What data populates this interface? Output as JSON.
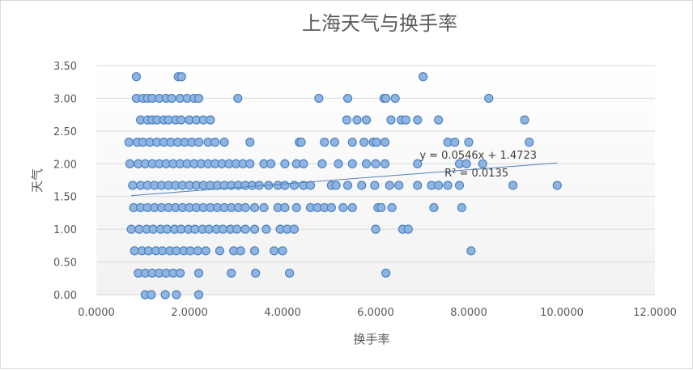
{
  "colors": {
    "marker_fill": "#8db4e2",
    "marker_stroke": "#4f81bd",
    "trendline": "#4f81bd",
    "grid": "#d9d9d9",
    "text": "#595959"
  },
  "chart_data": {
    "type": "scatter",
    "title": "上海天气与换手率",
    "xlabel": "换手率",
    "ylabel": "天气",
    "xlim": [
      0,
      12
    ],
    "ylim": [
      0,
      3.5
    ],
    "x_ticks": [
      "0.0000",
      "2.0000",
      "4.0000",
      "6.0000",
      "8.0000",
      "10.0000",
      "12.0000"
    ],
    "y_ticks": [
      "0.00",
      "0.50",
      "1.00",
      "1.50",
      "2.00",
      "2.50",
      "3.00",
      "3.50"
    ],
    "grid": "horizontal",
    "legend": "none",
    "trendline": {
      "type": "linear",
      "slope": 0.0546,
      "intercept": 1.4723,
      "x_range": [
        0.75,
        9.9
      ],
      "equation": "y = 0.0546x + 1.4723",
      "r_squared": "R² = 0.0135"
    },
    "points": [
      [
        0.86,
        3.33
      ],
      [
        1.76,
        3.33
      ],
      [
        1.83,
        3.33
      ],
      [
        7.02,
        3.33
      ],
      [
        0.86,
        3.0
      ],
      [
        1.0,
        3.0
      ],
      [
        1.1,
        3.0
      ],
      [
        1.2,
        3.0
      ],
      [
        1.35,
        3.0
      ],
      [
        1.5,
        3.0
      ],
      [
        1.62,
        3.0
      ],
      [
        1.8,
        3.0
      ],
      [
        1.95,
        3.0
      ],
      [
        2.1,
        3.0
      ],
      [
        2.2,
        3.0
      ],
      [
        3.04,
        3.0
      ],
      [
        4.78,
        3.0
      ],
      [
        5.4,
        3.0
      ],
      [
        6.18,
        3.0
      ],
      [
        6.22,
        3.0
      ],
      [
        6.42,
        3.0
      ],
      [
        8.43,
        3.0
      ],
      [
        0.95,
        2.67
      ],
      [
        1.1,
        2.67
      ],
      [
        1.2,
        2.67
      ],
      [
        1.3,
        2.67
      ],
      [
        1.45,
        2.67
      ],
      [
        1.55,
        2.67
      ],
      [
        1.7,
        2.67
      ],
      [
        1.82,
        2.67
      ],
      [
        2.0,
        2.67
      ],
      [
        2.15,
        2.67
      ],
      [
        2.3,
        2.67
      ],
      [
        2.45,
        2.67
      ],
      [
        5.38,
        2.67
      ],
      [
        5.6,
        2.67
      ],
      [
        5.8,
        2.67
      ],
      [
        6.33,
        2.67
      ],
      [
        6.55,
        2.67
      ],
      [
        6.65,
        2.67
      ],
      [
        6.9,
        2.67
      ],
      [
        7.35,
        2.67
      ],
      [
        9.2,
        2.67
      ],
      [
        0.7,
        2.33
      ],
      [
        0.88,
        2.33
      ],
      [
        1.0,
        2.33
      ],
      [
        1.15,
        2.33
      ],
      [
        1.3,
        2.33
      ],
      [
        1.45,
        2.33
      ],
      [
        1.6,
        2.33
      ],
      [
        1.75,
        2.33
      ],
      [
        1.9,
        2.33
      ],
      [
        2.05,
        2.33
      ],
      [
        2.2,
        2.33
      ],
      [
        2.4,
        2.33
      ],
      [
        2.55,
        2.33
      ],
      [
        2.75,
        2.33
      ],
      [
        3.3,
        2.33
      ],
      [
        4.36,
        2.33
      ],
      [
        4.4,
        2.33
      ],
      [
        4.9,
        2.33
      ],
      [
        5.12,
        2.33
      ],
      [
        5.5,
        2.33
      ],
      [
        5.75,
        2.33
      ],
      [
        5.95,
        2.33
      ],
      [
        6.02,
        2.33
      ],
      [
        6.2,
        2.33
      ],
      [
        7.55,
        2.33
      ],
      [
        7.7,
        2.33
      ],
      [
        8.0,
        2.33
      ],
      [
        9.3,
        2.33
      ],
      [
        0.72,
        2.0
      ],
      [
        0.9,
        2.0
      ],
      [
        1.05,
        2.0
      ],
      [
        1.2,
        2.0
      ],
      [
        1.35,
        2.0
      ],
      [
        1.5,
        2.0
      ],
      [
        1.65,
        2.0
      ],
      [
        1.8,
        2.0
      ],
      [
        1.95,
        2.0
      ],
      [
        2.1,
        2.0
      ],
      [
        2.25,
        2.0
      ],
      [
        2.4,
        2.0
      ],
      [
        2.55,
        2.0
      ],
      [
        2.7,
        2.0
      ],
      [
        2.85,
        2.0
      ],
      [
        3.0,
        2.0
      ],
      [
        3.15,
        2.0
      ],
      [
        3.3,
        2.0
      ],
      [
        3.6,
        2.0
      ],
      [
        3.75,
        2.0
      ],
      [
        4.05,
        2.0
      ],
      [
        4.3,
        2.0
      ],
      [
        4.45,
        2.0
      ],
      [
        4.85,
        2.0
      ],
      [
        5.2,
        2.0
      ],
      [
        5.5,
        2.0
      ],
      [
        5.8,
        2.0
      ],
      [
        6.0,
        2.0
      ],
      [
        6.2,
        2.0
      ],
      [
        6.9,
        2.0
      ],
      [
        7.8,
        2.0
      ],
      [
        7.95,
        2.0
      ],
      [
        8.3,
        2.0
      ],
      [
        0.78,
        1.67
      ],
      [
        0.95,
        1.67
      ],
      [
        1.1,
        1.67
      ],
      [
        1.25,
        1.67
      ],
      [
        1.4,
        1.67
      ],
      [
        1.55,
        1.67
      ],
      [
        1.7,
        1.67
      ],
      [
        1.85,
        1.67
      ],
      [
        2.0,
        1.67
      ],
      [
        2.15,
        1.67
      ],
      [
        2.3,
        1.67
      ],
      [
        2.45,
        1.67
      ],
      [
        2.6,
        1.67
      ],
      [
        2.75,
        1.67
      ],
      [
        2.9,
        1.67
      ],
      [
        3.05,
        1.67
      ],
      [
        3.2,
        1.67
      ],
      [
        3.35,
        1.67
      ],
      [
        3.5,
        1.67
      ],
      [
        3.7,
        1.67
      ],
      [
        3.9,
        1.67
      ],
      [
        4.05,
        1.67
      ],
      [
        4.25,
        1.67
      ],
      [
        4.45,
        1.67
      ],
      [
        4.6,
        1.67
      ],
      [
        5.05,
        1.67
      ],
      [
        5.15,
        1.67
      ],
      [
        5.4,
        1.67
      ],
      [
        5.7,
        1.67
      ],
      [
        5.98,
        1.67
      ],
      [
        6.3,
        1.67
      ],
      [
        6.5,
        1.67
      ],
      [
        6.9,
        1.67
      ],
      [
        7.2,
        1.67
      ],
      [
        7.35,
        1.67
      ],
      [
        7.55,
        1.67
      ],
      [
        7.8,
        1.67
      ],
      [
        8.95,
        1.67
      ],
      [
        9.9,
        1.67
      ],
      [
        0.8,
        1.33
      ],
      [
        0.95,
        1.33
      ],
      [
        1.1,
        1.33
      ],
      [
        1.25,
        1.33
      ],
      [
        1.4,
        1.33
      ],
      [
        1.55,
        1.33
      ],
      [
        1.7,
        1.33
      ],
      [
        1.85,
        1.33
      ],
      [
        2.0,
        1.33
      ],
      [
        2.15,
        1.33
      ],
      [
        2.3,
        1.33
      ],
      [
        2.45,
        1.33
      ],
      [
        2.6,
        1.33
      ],
      [
        2.75,
        1.33
      ],
      [
        2.9,
        1.33
      ],
      [
        3.05,
        1.33
      ],
      [
        3.2,
        1.33
      ],
      [
        3.4,
        1.33
      ],
      [
        3.6,
        1.33
      ],
      [
        3.9,
        1.33
      ],
      [
        4.05,
        1.33
      ],
      [
        4.3,
        1.33
      ],
      [
        4.6,
        1.33
      ],
      [
        4.75,
        1.33
      ],
      [
        4.9,
        1.33
      ],
      [
        5.05,
        1.33
      ],
      [
        5.3,
        1.33
      ],
      [
        5.5,
        1.33
      ],
      [
        6.05,
        1.33
      ],
      [
        6.12,
        1.33
      ],
      [
        6.35,
        1.33
      ],
      [
        7.25,
        1.33
      ],
      [
        7.85,
        1.33
      ],
      [
        0.75,
        1.0
      ],
      [
        0.92,
        1.0
      ],
      [
        1.08,
        1.0
      ],
      [
        1.22,
        1.0
      ],
      [
        1.38,
        1.0
      ],
      [
        1.52,
        1.0
      ],
      [
        1.68,
        1.0
      ],
      [
        1.82,
        1.0
      ],
      [
        1.98,
        1.0
      ],
      [
        2.12,
        1.0
      ],
      [
        2.28,
        1.0
      ],
      [
        2.42,
        1.0
      ],
      [
        2.58,
        1.0
      ],
      [
        2.72,
        1.0
      ],
      [
        2.88,
        1.0
      ],
      [
        3.02,
        1.0
      ],
      [
        3.2,
        1.0
      ],
      [
        3.4,
        1.0
      ],
      [
        3.65,
        1.0
      ],
      [
        3.95,
        1.0
      ],
      [
        4.1,
        1.0
      ],
      [
        4.25,
        1.0
      ],
      [
        6.0,
        1.0
      ],
      [
        6.58,
        1.0
      ],
      [
        6.7,
        1.0
      ],
      [
        0.82,
        0.67
      ],
      [
        0.98,
        0.67
      ],
      [
        1.12,
        0.67
      ],
      [
        1.28,
        0.67
      ],
      [
        1.42,
        0.67
      ],
      [
        1.58,
        0.67
      ],
      [
        1.72,
        0.67
      ],
      [
        1.88,
        0.67
      ],
      [
        2.02,
        0.67
      ],
      [
        2.18,
        0.67
      ],
      [
        2.35,
        0.67
      ],
      [
        2.65,
        0.67
      ],
      [
        2.95,
        0.67
      ],
      [
        3.1,
        0.67
      ],
      [
        3.4,
        0.67
      ],
      [
        3.82,
        0.67
      ],
      [
        4.0,
        0.67
      ],
      [
        8.05,
        0.67
      ],
      [
        0.9,
        0.33
      ],
      [
        1.05,
        0.33
      ],
      [
        1.2,
        0.33
      ],
      [
        1.35,
        0.33
      ],
      [
        1.5,
        0.33
      ],
      [
        1.65,
        0.33
      ],
      [
        1.8,
        0.33
      ],
      [
        2.2,
        0.33
      ],
      [
        2.9,
        0.33
      ],
      [
        3.42,
        0.33
      ],
      [
        4.15,
        0.33
      ],
      [
        6.22,
        0.33
      ],
      [
        1.05,
        0.0
      ],
      [
        1.18,
        0.0
      ],
      [
        1.48,
        0.0
      ],
      [
        1.72,
        0.0
      ],
      [
        2.2,
        0.0
      ]
    ]
  }
}
